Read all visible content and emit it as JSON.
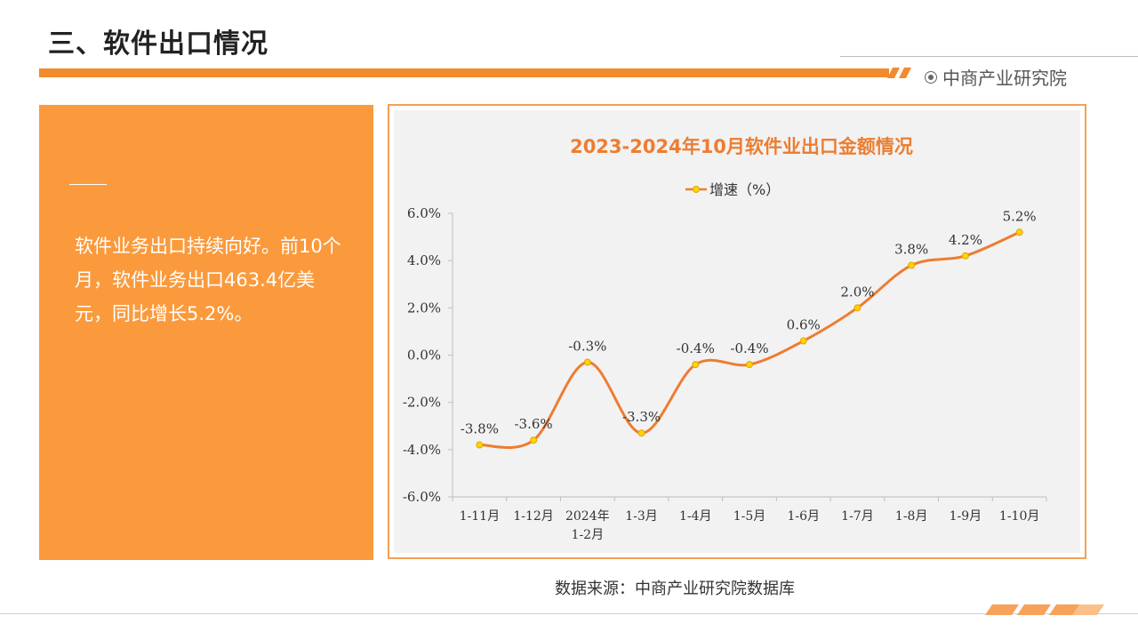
{
  "header": {
    "title": "三、软件出口情况",
    "brand": "中商产业研究院"
  },
  "summary": {
    "text": "软件业务出口持续向好。前10个月，软件业务出口463.4亿美元，同比增长5.2%。"
  },
  "footer": {
    "source": "数据来源：中商产业研究院数据库"
  },
  "colors": {
    "accent": "#f28a2e",
    "panel": "#fb9a3c",
    "series_line": "#ed7d31",
    "marker": "#ffd400"
  },
  "chart_data": {
    "type": "line",
    "title": "2023-2024年10月软件业出口金额情况",
    "legend_position": "top-center",
    "grid": false,
    "categories": [
      "1-11月",
      "1-12月",
      "2024年\n1-2月",
      "1-3月",
      "1-4月",
      "1-5月",
      "1-6月",
      "1-7月",
      "1-8月",
      "1-9月",
      "1-10月"
    ],
    "series": [
      {
        "name": "增速（%）",
        "values": [
          -3.8,
          -3.6,
          -0.3,
          -3.3,
          -0.4,
          -0.4,
          0.6,
          2.0,
          3.8,
          4.2,
          5.2
        ],
        "labels": [
          "-3.8%",
          "-3.6%",
          "-0.3%",
          "-3.3%",
          "-0.4%",
          "-0.4%",
          "0.6%",
          "2.0%",
          "3.8%",
          "4.2%",
          "5.2%"
        ]
      }
    ],
    "ylim": [
      -6.0,
      6.0
    ],
    "yticks": [
      -6.0,
      -4.0,
      -2.0,
      0.0,
      2.0,
      4.0,
      6.0
    ],
    "ytick_labels": [
      "-6.0%",
      "-4.0%",
      "-2.0%",
      "0.0%",
      "2.0%",
      "4.0%",
      "6.0%"
    ]
  }
}
